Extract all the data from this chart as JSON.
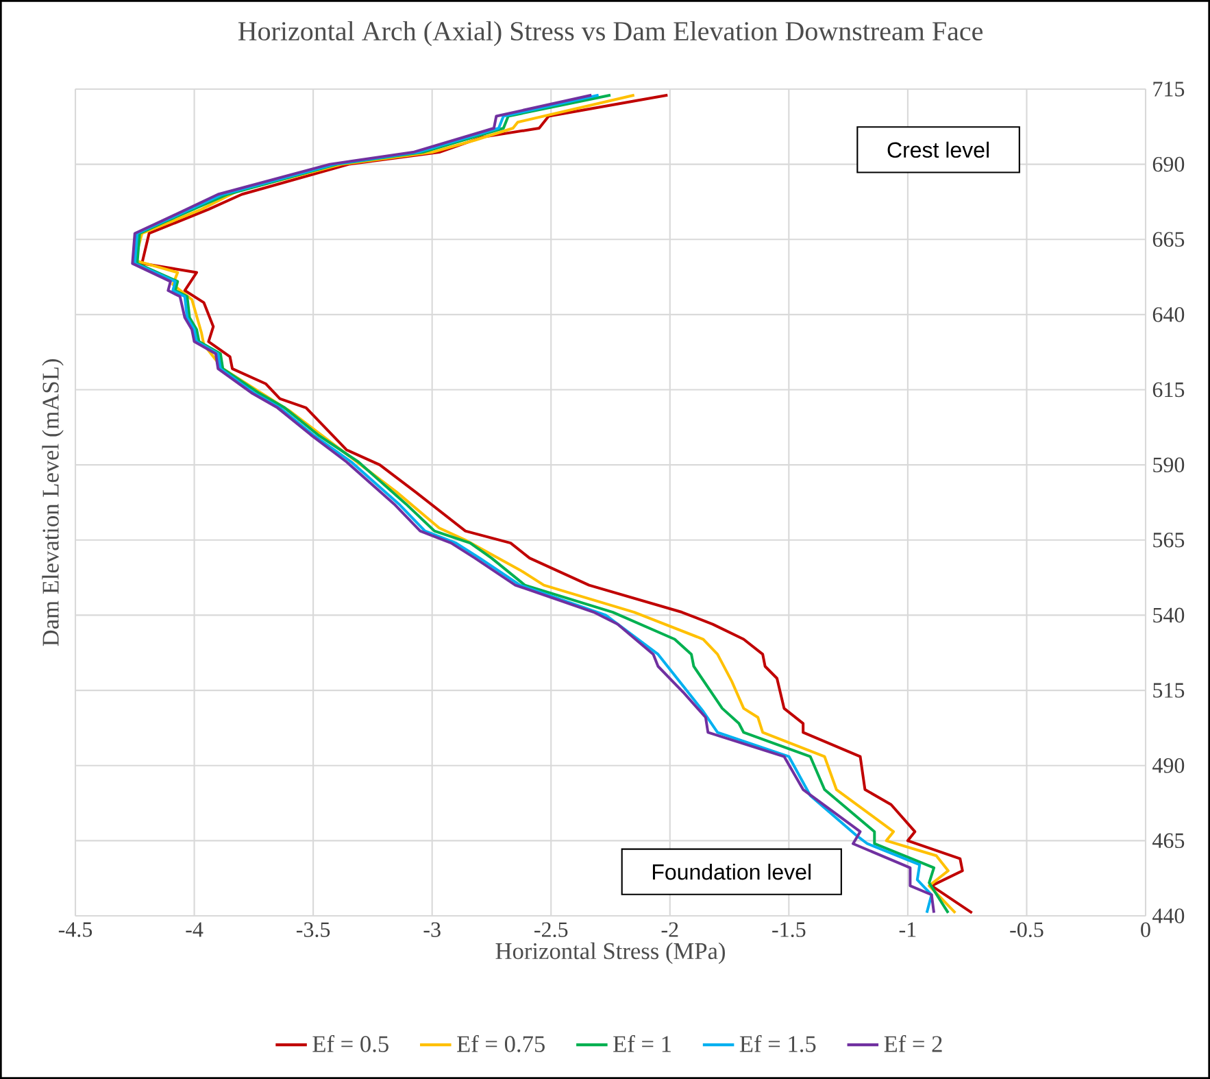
{
  "chart_data": {
    "type": "line",
    "title": "Horizontal Arch (Axial) Stress vs Dam Elevation Downstream Face",
    "xlabel": "Horizontal Stress (MPa)",
    "ylabel": "Dam Elevation Level (mASL)",
    "xlim": [
      -4.5,
      0
    ],
    "xticks": [
      -4.5,
      -4,
      -3.5,
      -3,
      -2.5,
      -2,
      -1.5,
      -1,
      -0.5,
      0
    ],
    "ylim": [
      440,
      715
    ],
    "yticks": [
      440,
      465,
      490,
      515,
      540,
      565,
      590,
      615,
      640,
      665,
      690,
      715
    ],
    "grid": true,
    "legend": "bottom",
    "annotations": [
      "Crest level",
      "Foundation level"
    ],
    "series": [
      {
        "name": "Ef = 0.5",
        "color": "#c00000",
        "x": [
          -2.01,
          -2.51,
          -2.55,
          -2.79,
          -2.97,
          -3.35,
          -3.8,
          -3.94,
          -4.19,
          -4.22,
          -3.99,
          -4.04,
          -3.96,
          -3.92,
          -3.94,
          -3.85,
          -3.84,
          -3.7,
          -3.64,
          -3.53,
          -3.36,
          -3.22,
          -3.07,
          -2.86,
          -2.67,
          -2.59,
          -2.34,
          -1.95,
          -1.82,
          -1.69,
          -1.61,
          -1.6,
          -1.55,
          -1.52,
          -1.44,
          -1.44,
          -1.2,
          -1.18,
          -1.07,
          -0.97,
          -1.0,
          -0.78,
          -0.77,
          -0.9,
          -0.73
        ],
        "values": [
          713,
          706,
          702,
          699,
          694,
          690,
          680,
          675,
          667,
          657,
          654,
          648,
          644,
          636,
          631,
          626,
          622,
          617,
          612,
          609,
          595,
          590,
          581,
          568,
          564,
          559,
          550,
          541,
          537,
          532,
          527,
          523,
          519,
          509,
          504,
          501,
          493,
          482,
          477,
          468,
          465,
          459,
          455,
          450,
          441
        ]
      },
      {
        "name": "Ef = 0.75",
        "color": "#ffc000",
        "x": [
          -2.15,
          -2.64,
          -2.66,
          -2.82,
          -3.0,
          -3.38,
          -3.82,
          -3.97,
          -4.22,
          -4.25,
          -4.07,
          -4.09,
          -4.01,
          -3.97,
          -3.96,
          -3.88,
          -3.72,
          -3.6,
          -3.4,
          -3.3,
          -3.15,
          -2.97,
          -2.86,
          -2.63,
          -2.53,
          -2.15,
          -1.86,
          -1.8,
          -1.74,
          -1.69,
          -1.63,
          -1.61,
          -1.35,
          -1.3,
          -1.06,
          -1.09,
          -0.88,
          -0.83,
          -0.91,
          -0.8
        ],
        "values": [
          713,
          704,
          702,
          698,
          694,
          690,
          681,
          675,
          667,
          658,
          654,
          650,
          645,
          634,
          630,
          622,
          614,
          608,
          596,
          590,
          581,
          569,
          565,
          555,
          550,
          541,
          532,
          527,
          518,
          509,
          506,
          501,
          493,
          482,
          468,
          465,
          460,
          455,
          450,
          441
        ]
      },
      {
        "name": "Ef = 1",
        "color": "#00b050",
        "x": [
          -2.25,
          -2.68,
          -2.7,
          -3.04,
          -3.4,
          -3.86,
          -4.12,
          -4.23,
          -4.24,
          -4.07,
          -4.08,
          -4.03,
          -4.02,
          -3.99,
          -3.98,
          -3.89,
          -3.88,
          -3.73,
          -3.62,
          -3.48,
          -3.31,
          -3.11,
          -2.99,
          -2.84,
          -2.75,
          -2.61,
          -2.24,
          -1.98,
          -1.91,
          -1.9,
          -1.78,
          -1.71,
          -1.69,
          -1.41,
          -1.35,
          -1.14,
          -1.14,
          -0.89,
          -0.91,
          -0.83
        ],
        "values": [
          713,
          706,
          702,
          694,
          690,
          680,
          671,
          667,
          657,
          651,
          648,
          646,
          639,
          635,
          631,
          627,
          622,
          614,
          609,
          600,
          591,
          577,
          568,
          564,
          559,
          550,
          541,
          532,
          527,
          523,
          509,
          504,
          501,
          493,
          482,
          468,
          464,
          456,
          451,
          441
        ]
      },
      {
        "name": "Ef = 1.5",
        "color": "#00b0f0",
        "x": [
          -2.3,
          -2.7,
          -2.72,
          -3.06,
          -3.41,
          -3.88,
          -4.13,
          -4.24,
          -4.25,
          -4.08,
          -4.09,
          -4.04,
          -4.03,
          -4.0,
          -3.99,
          -3.9,
          -3.89,
          -3.75,
          -3.64,
          -3.5,
          -3.34,
          -3.14,
          -3.03,
          -2.9,
          -2.8,
          -2.63,
          -2.27,
          -2.05,
          -2.01,
          -1.86,
          -1.8,
          -1.5,
          -1.41,
          -1.22,
          -1.17,
          -0.95,
          -0.96,
          -0.9,
          -0.92
        ],
        "values": [
          713,
          706,
          702,
          694,
          690,
          680,
          671,
          667,
          657,
          651,
          648,
          646,
          639,
          635,
          631,
          627,
          622,
          614,
          609,
          600,
          591,
          577,
          568,
          564,
          559,
          550,
          540,
          527,
          523,
          508,
          501,
          493,
          480,
          467,
          464,
          457,
          452,
          447,
          441
        ]
      },
      {
        "name": "Ef = 2",
        "color": "#7030a0",
        "x": [
          -2.33,
          -2.73,
          -2.74,
          -3.08,
          -3.43,
          -3.9,
          -4.14,
          -4.25,
          -4.26,
          -4.1,
          -4.11,
          -4.06,
          -4.04,
          -4.01,
          -4.0,
          -3.91,
          -3.9,
          -3.76,
          -3.65,
          -3.51,
          -3.36,
          -3.16,
          -3.05,
          -2.92,
          -2.82,
          -2.65,
          -2.32,
          -2.22,
          -2.07,
          -2.05,
          -1.94,
          -1.85,
          -1.84,
          -1.52,
          -1.44,
          -1.2,
          -1.23,
          -0.99,
          -0.99,
          -0.9,
          -0.89
        ],
        "values": [
          713,
          706,
          702,
          694,
          690,
          680,
          671,
          667,
          657,
          651,
          648,
          646,
          639,
          635,
          631,
          627,
          622,
          614,
          609,
          600,
          591,
          577,
          568,
          564,
          559,
          550,
          541,
          537,
          527,
          523,
          514,
          506,
          501,
          493,
          482,
          468,
          464,
          456,
          450,
          447,
          441
        ]
      }
    ]
  }
}
